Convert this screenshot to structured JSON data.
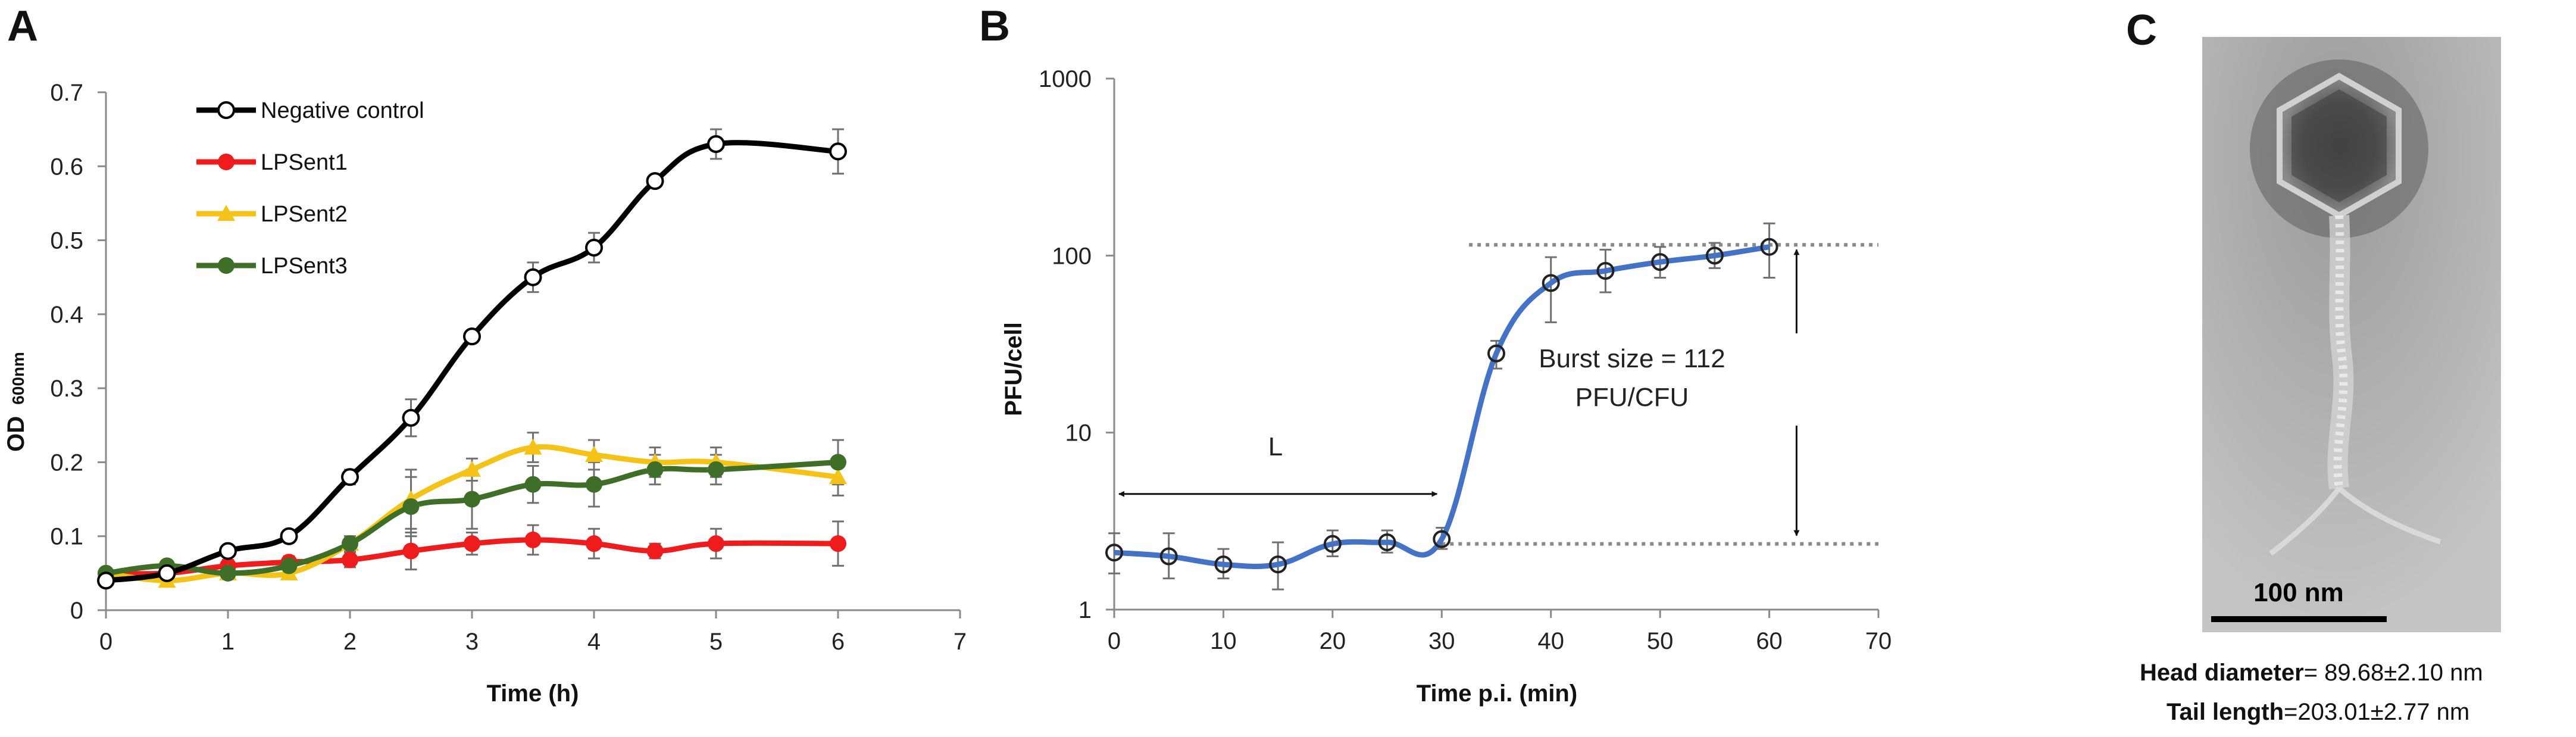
{
  "panels": {
    "a": "A",
    "b": "B",
    "c": "C"
  },
  "chart_data": [
    {
      "type": "line",
      "title": "",
      "xlabel": "Time (h)",
      "ylabel": "OD",
      "ylabel_sub": "600nm",
      "xlim": [
        0,
        7
      ],
      "ylim": [
        0,
        0.7
      ],
      "xticks": [
        0,
        1,
        2,
        3,
        4,
        5,
        6,
        7
      ],
      "yticks": [
        0,
        0.1,
        0.2,
        0.3,
        0.4,
        0.5,
        0.6,
        0.7
      ],
      "grid": false,
      "legend_position": "top-left",
      "series": [
        {
          "name": "Negative control",
          "color": "#000000",
          "marker": "open-circle",
          "x": [
            0,
            0.5,
            1,
            1.5,
            2,
            2.5,
            3,
            3.5,
            4,
            4.5,
            5,
            6
          ],
          "y": [
            0.04,
            0.05,
            0.08,
            0.1,
            0.18,
            0.26,
            0.37,
            0.45,
            0.49,
            0.58,
            0.63,
            0.62
          ],
          "err": [
            0.005,
            0.005,
            0.008,
            0.008,
            0.01,
            0.025,
            0.008,
            0.02,
            0.02,
            0.008,
            0.02,
            0.03
          ]
        },
        {
          "name": "LPSent1",
          "color": "#ee1c1c",
          "marker": "filled-circle",
          "x": [
            0,
            0.5,
            1,
            1.5,
            2,
            2.5,
            3,
            3.5,
            4,
            4.5,
            5,
            6
          ],
          "y": [
            0.05,
            0.05,
            0.06,
            0.065,
            0.068,
            0.08,
            0.09,
            0.095,
            0.09,
            0.08,
            0.09,
            0.09
          ],
          "err": [
            0.005,
            0.005,
            0.008,
            0.008,
            0.01,
            0.025,
            0.015,
            0.02,
            0.02,
            0.01,
            0.02,
            0.03
          ]
        },
        {
          "name": "LPSent2",
          "color": "#f5c218",
          "marker": "filled-triangle",
          "x": [
            0,
            0.5,
            1,
            1.5,
            2,
            2.5,
            3,
            3.5,
            4,
            4.5,
            5,
            6
          ],
          "y": [
            0.05,
            0.04,
            0.05,
            0.05,
            0.09,
            0.15,
            0.19,
            0.22,
            0.21,
            0.2,
            0.2,
            0.18
          ],
          "err": [
            0.005,
            0.005,
            0.008,
            0.008,
            0.01,
            0.04,
            0.015,
            0.02,
            0.02,
            0.02,
            0.02,
            0.025
          ]
        },
        {
          "name": "LPSent3",
          "color": "#3f6e29",
          "marker": "filled-circle",
          "x": [
            0,
            0.5,
            1,
            1.5,
            2,
            2.5,
            3,
            3.5,
            4,
            4.5,
            5,
            6
          ],
          "y": [
            0.05,
            0.06,
            0.05,
            0.06,
            0.09,
            0.14,
            0.15,
            0.17,
            0.17,
            0.19,
            0.19,
            0.2
          ],
          "err": [
            0.005,
            0.005,
            0.008,
            0.008,
            0.01,
            0.04,
            0.04,
            0.025,
            0.03,
            0.02,
            0.02,
            0.03
          ]
        }
      ]
    },
    {
      "type": "line",
      "title": "",
      "xlabel": "Time p.i. (min)",
      "ylabel": "PFU/cell",
      "yscale": "log",
      "xlim": [
        0,
        70
      ],
      "ylim": [
        1,
        1000
      ],
      "xticks": [
        0,
        10,
        20,
        30,
        40,
        50,
        60,
        70
      ],
      "yticks": [
        1,
        10,
        100,
        1000
      ],
      "ytick_labels": [
        "1",
        "10",
        "100",
        "1000"
      ],
      "grid": false,
      "series": [
        {
          "name": "PFU/cell",
          "color": "#4472c4",
          "marker": "open-circle",
          "x": [
            0,
            5,
            10,
            15,
            20,
            25,
            30,
            35,
            40,
            45,
            50,
            55,
            60
          ],
          "y": [
            2.1,
            2.0,
            1.8,
            1.8,
            2.35,
            2.4,
            2.5,
            28,
            70,
            82,
            92,
            100,
            112
          ],
          "err_low": [
            1.6,
            1.5,
            1.5,
            1.3,
            2.0,
            2.1,
            2.2,
            23,
            42,
            62,
            75,
            85,
            75
          ],
          "err_high": [
            2.7,
            2.7,
            2.2,
            2.4,
            2.8,
            2.8,
            2.9,
            33,
            98,
            108,
            112,
            118,
            152
          ]
        }
      ],
      "annotations": {
        "latent_label": "L",
        "latent_start": 0,
        "latent_end": 30,
        "latent_y": 4.5,
        "burst_line1": "Burst size = 112",
        "burst_line2": "PFU/CFU",
        "plateau_low": 2.35,
        "plateau_high": 115,
        "burst_arrow_x": 62.5
      }
    }
  ],
  "micrograph": {
    "scale_label": "100 nm",
    "head_label": "Head diameter",
    "head_value": "= 89.68±2.10 nm",
    "tail_label": "Tail length",
    "tail_value": "=203.01±2.77 nm"
  }
}
